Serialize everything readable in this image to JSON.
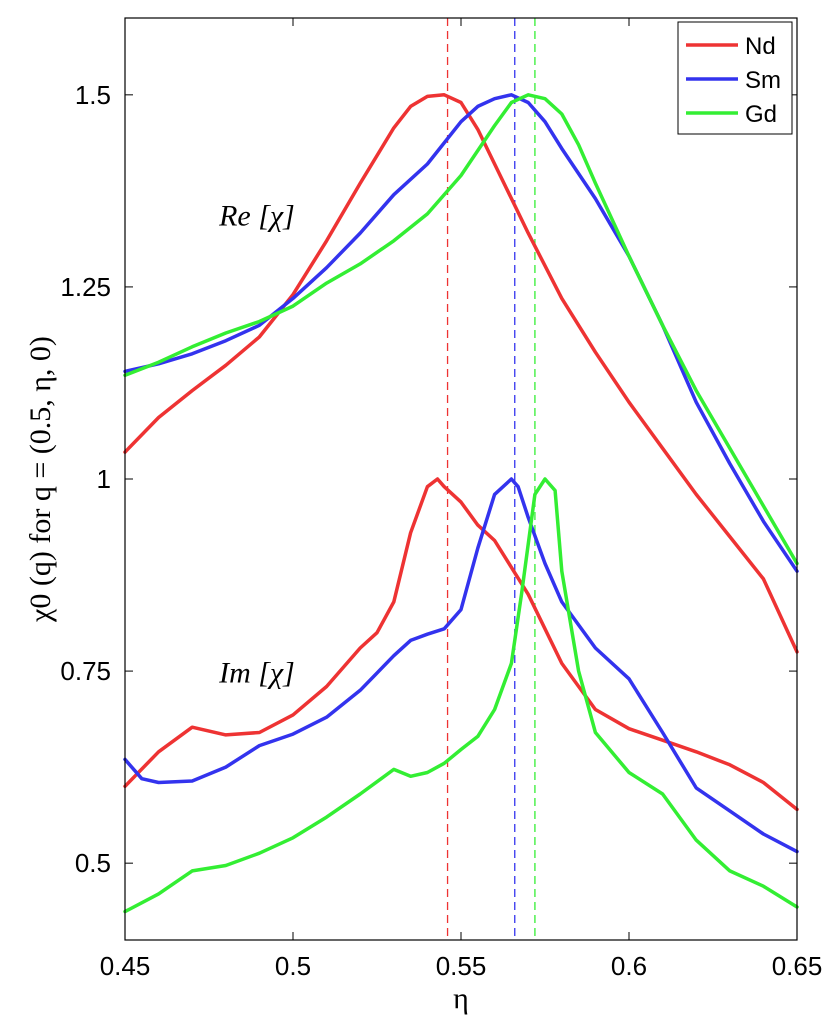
{
  "chart_data": {
    "type": "line",
    "xlabel": "η",
    "ylabel": "χ0 (q) for q = (0.5, η, 0)",
    "xlim": [
      0.45,
      0.65
    ],
    "ylim": [
      0.4,
      1.6
    ],
    "xticks": [
      {
        "value": 0.45,
        "label": "0.45"
      },
      {
        "value": 0.5,
        "label": "0.5"
      },
      {
        "value": 0.55,
        "label": "0.55"
      },
      {
        "value": 0.6,
        "label": "0.6"
      },
      {
        "value": 0.65,
        "label": "0.65"
      }
    ],
    "yticks": [
      {
        "value": 0.5,
        "label": "0.5"
      },
      {
        "value": 0.75,
        "label": "0.75"
      },
      {
        "value": 1.0,
        "label": "1"
      },
      {
        "value": 1.25,
        "label": "1.25"
      },
      {
        "value": 1.5,
        "label": "1.5"
      }
    ],
    "grid": false,
    "legend_position": "top-right",
    "annotations": [
      {
        "text": "Re [χ]",
        "x": 0.478,
        "y": 1.33
      },
      {
        "text": "Im [χ]",
        "x": 0.478,
        "y": 0.735
      }
    ],
    "series": [
      {
        "name": "Nd",
        "color": "#ee3333",
        "part": "Re",
        "x": [
          0.45,
          0.46,
          0.47,
          0.48,
          0.49,
          0.5,
          0.51,
          0.52,
          0.53,
          0.535,
          0.54,
          0.545,
          0.55,
          0.555,
          0.56,
          0.57,
          0.58,
          0.59,
          0.6,
          0.61,
          0.62,
          0.63,
          0.64,
          0.65
        ],
        "y": [
          1.035,
          1.08,
          1.115,
          1.148,
          1.185,
          1.24,
          1.31,
          1.385,
          1.457,
          1.485,
          1.498,
          1.5,
          1.49,
          1.455,
          1.41,
          1.32,
          1.235,
          1.165,
          1.1,
          1.04,
          0.98,
          0.925,
          0.87,
          0.775
        ]
      },
      {
        "name": "Sm",
        "color": "#3333ee",
        "part": "Re",
        "x": [
          0.45,
          0.46,
          0.47,
          0.48,
          0.49,
          0.5,
          0.51,
          0.52,
          0.53,
          0.54,
          0.55,
          0.555,
          0.56,
          0.565,
          0.57,
          0.575,
          0.58,
          0.59,
          0.6,
          0.61,
          0.62,
          0.63,
          0.64,
          0.65
        ],
        "y": [
          1.14,
          1.15,
          1.163,
          1.18,
          1.2,
          1.235,
          1.275,
          1.32,
          1.37,
          1.41,
          1.465,
          1.485,
          1.495,
          1.5,
          1.49,
          1.465,
          1.43,
          1.365,
          1.29,
          1.2,
          1.1,
          1.02,
          0.945,
          0.88
        ]
      },
      {
        "name": "Gd",
        "color": "#33ee33",
        "part": "Re",
        "x": [
          0.45,
          0.46,
          0.47,
          0.48,
          0.49,
          0.5,
          0.51,
          0.52,
          0.53,
          0.54,
          0.55,
          0.56,
          0.565,
          0.57,
          0.575,
          0.58,
          0.585,
          0.59,
          0.6,
          0.61,
          0.62,
          0.63,
          0.64,
          0.65
        ],
        "y": [
          1.135,
          1.152,
          1.172,
          1.19,
          1.205,
          1.225,
          1.255,
          1.28,
          1.31,
          1.345,
          1.395,
          1.46,
          1.49,
          1.5,
          1.495,
          1.475,
          1.435,
          1.385,
          1.29,
          1.2,
          1.115,
          1.04,
          0.965,
          0.89
        ]
      },
      {
        "name": "Nd",
        "color": "#ee3333",
        "part": "Im",
        "x": [
          0.45,
          0.46,
          0.47,
          0.48,
          0.49,
          0.5,
          0.51,
          0.52,
          0.525,
          0.53,
          0.535,
          0.54,
          0.543,
          0.545,
          0.55,
          0.555,
          0.56,
          0.57,
          0.58,
          0.59,
          0.6,
          0.61,
          0.62,
          0.63,
          0.64,
          0.65
        ],
        "y": [
          0.6,
          0.645,
          0.677,
          0.667,
          0.67,
          0.693,
          0.73,
          0.78,
          0.8,
          0.84,
          0.93,
          0.99,
          1.0,
          0.99,
          0.97,
          0.94,
          0.92,
          0.85,
          0.76,
          0.7,
          0.675,
          0.66,
          0.645,
          0.628,
          0.605,
          0.57
        ]
      },
      {
        "name": "Sm",
        "color": "#3333ee",
        "part": "Im",
        "x": [
          0.45,
          0.455,
          0.46,
          0.47,
          0.48,
          0.49,
          0.5,
          0.51,
          0.52,
          0.53,
          0.535,
          0.54,
          0.545,
          0.55,
          0.555,
          0.56,
          0.565,
          0.567,
          0.57,
          0.575,
          0.58,
          0.59,
          0.6,
          0.61,
          0.62,
          0.63,
          0.64,
          0.65
        ],
        "y": [
          0.635,
          0.61,
          0.605,
          0.607,
          0.625,
          0.653,
          0.668,
          0.69,
          0.725,
          0.77,
          0.79,
          0.798,
          0.805,
          0.83,
          0.91,
          0.98,
          1.0,
          0.99,
          0.95,
          0.89,
          0.84,
          0.78,
          0.74,
          0.67,
          0.598,
          0.568,
          0.538,
          0.515
        ]
      },
      {
        "name": "Gd",
        "color": "#33ee33",
        "part": "Im",
        "x": [
          0.45,
          0.46,
          0.47,
          0.48,
          0.49,
          0.5,
          0.51,
          0.52,
          0.53,
          0.535,
          0.54,
          0.545,
          0.55,
          0.555,
          0.56,
          0.565,
          0.568,
          0.572,
          0.575,
          0.578,
          0.58,
          0.585,
          0.59,
          0.6,
          0.61,
          0.62,
          0.63,
          0.64,
          0.65
        ],
        "y": [
          0.437,
          0.46,
          0.49,
          0.497,
          0.513,
          0.533,
          0.56,
          0.59,
          0.622,
          0.613,
          0.618,
          0.63,
          0.648,
          0.665,
          0.7,
          0.76,
          0.85,
          0.98,
          1.0,
          0.985,
          0.88,
          0.75,
          0.67,
          0.618,
          0.59,
          0.53,
          0.49,
          0.47,
          0.443
        ]
      }
    ],
    "peak_markers": [
      {
        "name": "Nd",
        "color": "#ee3333",
        "x": 0.546
      },
      {
        "name": "Sm",
        "color": "#3333ee",
        "x": 0.566
      },
      {
        "name": "Gd",
        "color": "#33ee33",
        "x": 0.572
      }
    ],
    "legend": [
      {
        "label": "Nd",
        "color": "#ee3333"
      },
      {
        "label": "Sm",
        "color": "#3333ee"
      },
      {
        "label": "Gd",
        "color": "#33ee33"
      }
    ]
  }
}
